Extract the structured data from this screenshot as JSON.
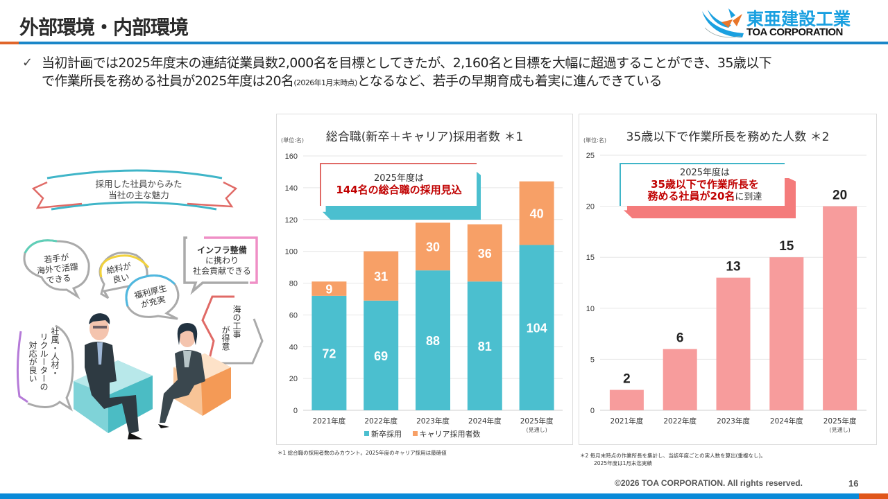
{
  "header": {
    "title": "外部環境・内部環境",
    "logo": {
      "jp": "東亜建設工業",
      "en": "TOA CORPORATION"
    }
  },
  "lead": {
    "check_icon": "✓",
    "line1": "当初計画では2025年度末の連結従業員数2,000名を目標としてきたが、2,160名と目標を大幅に超過することができ、35歳以下",
    "line2_a": "で作業所長を務める社員が2025年度は20名",
    "line2_small": "(2026年1月末時点)",
    "line2_b": "となるなど、若手の早期育成も着実に進んできている"
  },
  "illustration": {
    "ribbon": {
      "line1": "採用した社員からみた",
      "line2": "当社の主な魅力"
    },
    "bubbles": [
      {
        "lines": [
          "若手が",
          "海外で活躍",
          "できる"
        ],
        "color": "#5fcfb8"
      },
      {
        "lines": [
          "給料が",
          "良い"
        ],
        "color": "#f2d23c"
      },
      {
        "lines": [
          "福利厚生",
          "が充実"
        ],
        "color": "#4fb8e0"
      },
      {
        "lines": [
          "インフラ整備",
          "に携わり",
          "社会貢献できる"
        ],
        "color": "#ef8fc6"
      },
      {
        "lines": [
          "海の工事",
          "が得意"
        ],
        "color": "#e06a66"
      },
      {
        "lines": [
          "社風・人材・",
          "リクルーターの",
          "対応が良い"
        ],
        "color": "#b57ad8"
      }
    ]
  },
  "colors": {
    "shinsotsu": "#4bbfcf",
    "career": "#f7a067",
    "young": "#f79c9c",
    "accent_blue": "#1a86c8",
    "accent_orange": "#e0652a",
    "highlight_red": "#c00000"
  },
  "chart_data": [
    {
      "type": "bar",
      "stacked": true,
      "title": "総合職(新卒＋キャリア)採用者数 ＊1",
      "unit_label": "(単位:名)",
      "categories": [
        "2021年度",
        "2022年度",
        "2023年度",
        "2024年度",
        "2025年度"
      ],
      "category_sublabels": [
        "",
        "",
        "",
        "",
        "(見通し)"
      ],
      "series": [
        {
          "name": "新卒採用",
          "values": [
            72,
            69,
            88,
            81,
            104
          ]
        },
        {
          "name": "キャリア採用者数",
          "values": [
            9,
            31,
            30,
            36,
            40
          ]
        }
      ],
      "ylim": [
        0,
        160
      ],
      "yticks": [
        0,
        20,
        40,
        60,
        80,
        100,
        120,
        140,
        160
      ],
      "grid": true,
      "legend": "bottom",
      "callout": {
        "line1": "2025年度は",
        "line2": "144名の総合職の採用見込"
      },
      "footnote": "＊1  総合職の採用者数のみカウント。2025年度のキャリア採用は最確値"
    },
    {
      "type": "bar",
      "title": "35歳以下で作業所長を務めた人数 ＊2",
      "unit_label": "(単位:名)",
      "categories": [
        "2021年度",
        "2022年度",
        "2023年度",
        "2024年度",
        "2025年度"
      ],
      "category_sublabels": [
        "",
        "",
        "",
        "",
        "(見通し)"
      ],
      "values": [
        2,
        6,
        13,
        15,
        20
      ],
      "ylim": [
        0,
        25
      ],
      "yticks": [
        0,
        5,
        10,
        15,
        20,
        25
      ],
      "grid": true,
      "callout": {
        "line1": "2025年度は",
        "line2": "35歳以下で作業所長を",
        "line3_hl": "務める社員が20名",
        "line3_norm": "に到達"
      },
      "footnote_line1": "＊2  毎月末時点の作業所長を集計し、当該年度ごとの実人数を算出(重複なし)。",
      "footnote_line2": "2025年度は1月末迄実績"
    }
  ],
  "footer": {
    "copyright": "©2026 TOA CORPORATION. All rights reserved.",
    "page_number": "16"
  }
}
